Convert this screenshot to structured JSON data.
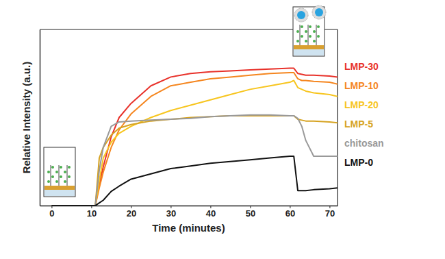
{
  "chart_data": {
    "type": "line",
    "x_label": "Time (minutes)",
    "y_label": "Relative Intensity (a.u.)",
    "x": [
      0,
      10,
      11,
      12,
      13,
      15,
      17,
      20,
      25,
      30,
      35,
      40,
      45,
      50,
      55,
      60,
      61,
      62,
      63,
      64,
      66,
      70,
      72
    ],
    "series": [
      {
        "name": "LMP-30",
        "color": "#e8312a",
        "values": [
          0,
          0,
          0,
          12,
          22,
          39,
          50,
          58,
          68,
          73,
          75,
          76,
          76.5,
          77,
          77.5,
          78,
          78,
          75,
          74.5,
          74,
          74,
          73.5,
          73
        ]
      },
      {
        "name": "LMP-10",
        "color": "#f5861f",
        "values": [
          0,
          0,
          0,
          10,
          19,
          33,
          43,
          52,
          62,
          68,
          70,
          72,
          73,
          74,
          75,
          75.5,
          75.5,
          72,
          71,
          71,
          70.5,
          70,
          69
        ]
      },
      {
        "name": "LMP-20",
        "color": "#f7c51e",
        "values": [
          0,
          0,
          0,
          14,
          27,
          36,
          41,
          45,
          50,
          54,
          57,
          60,
          63,
          66,
          68,
          70,
          71,
          67,
          66,
          65,
          64,
          63,
          62
        ]
      },
      {
        "name": "LMP-5",
        "color": "#d6a322",
        "values": [
          0,
          0,
          0,
          27,
          33,
          40,
          44,
          46,
          48,
          49,
          50,
          50.5,
          51,
          51,
          51,
          51,
          51,
          49,
          48.5,
          48,
          48,
          47.5,
          47
        ]
      },
      {
        "name": "chitosan",
        "color": "#999999",
        "values": [
          0,
          0,
          0,
          20,
          33,
          45,
          47.5,
          48,
          48.5,
          49,
          49.5,
          50.5,
          51,
          51.5,
          51.5,
          51,
          51,
          49.5,
          45,
          37,
          28,
          28,
          28
        ]
      },
      {
        "name": "LMP-0",
        "color": "#111111",
        "values": [
          0,
          0,
          0,
          1.5,
          3,
          8,
          11,
          15,
          18,
          21,
          22.5,
          24,
          25,
          26,
          27,
          28,
          28,
          8.5,
          8.5,
          8.5,
          9,
          9.5,
          10
        ]
      }
    ],
    "xlim": [
      -3,
      72
    ],
    "ylim": [
      0,
      100
    ],
    "xticks": [
      0,
      10,
      20,
      30,
      40,
      50,
      60,
      70
    ],
    "tick_labels": "x",
    "legend": "right",
    "grid": false
  }
}
